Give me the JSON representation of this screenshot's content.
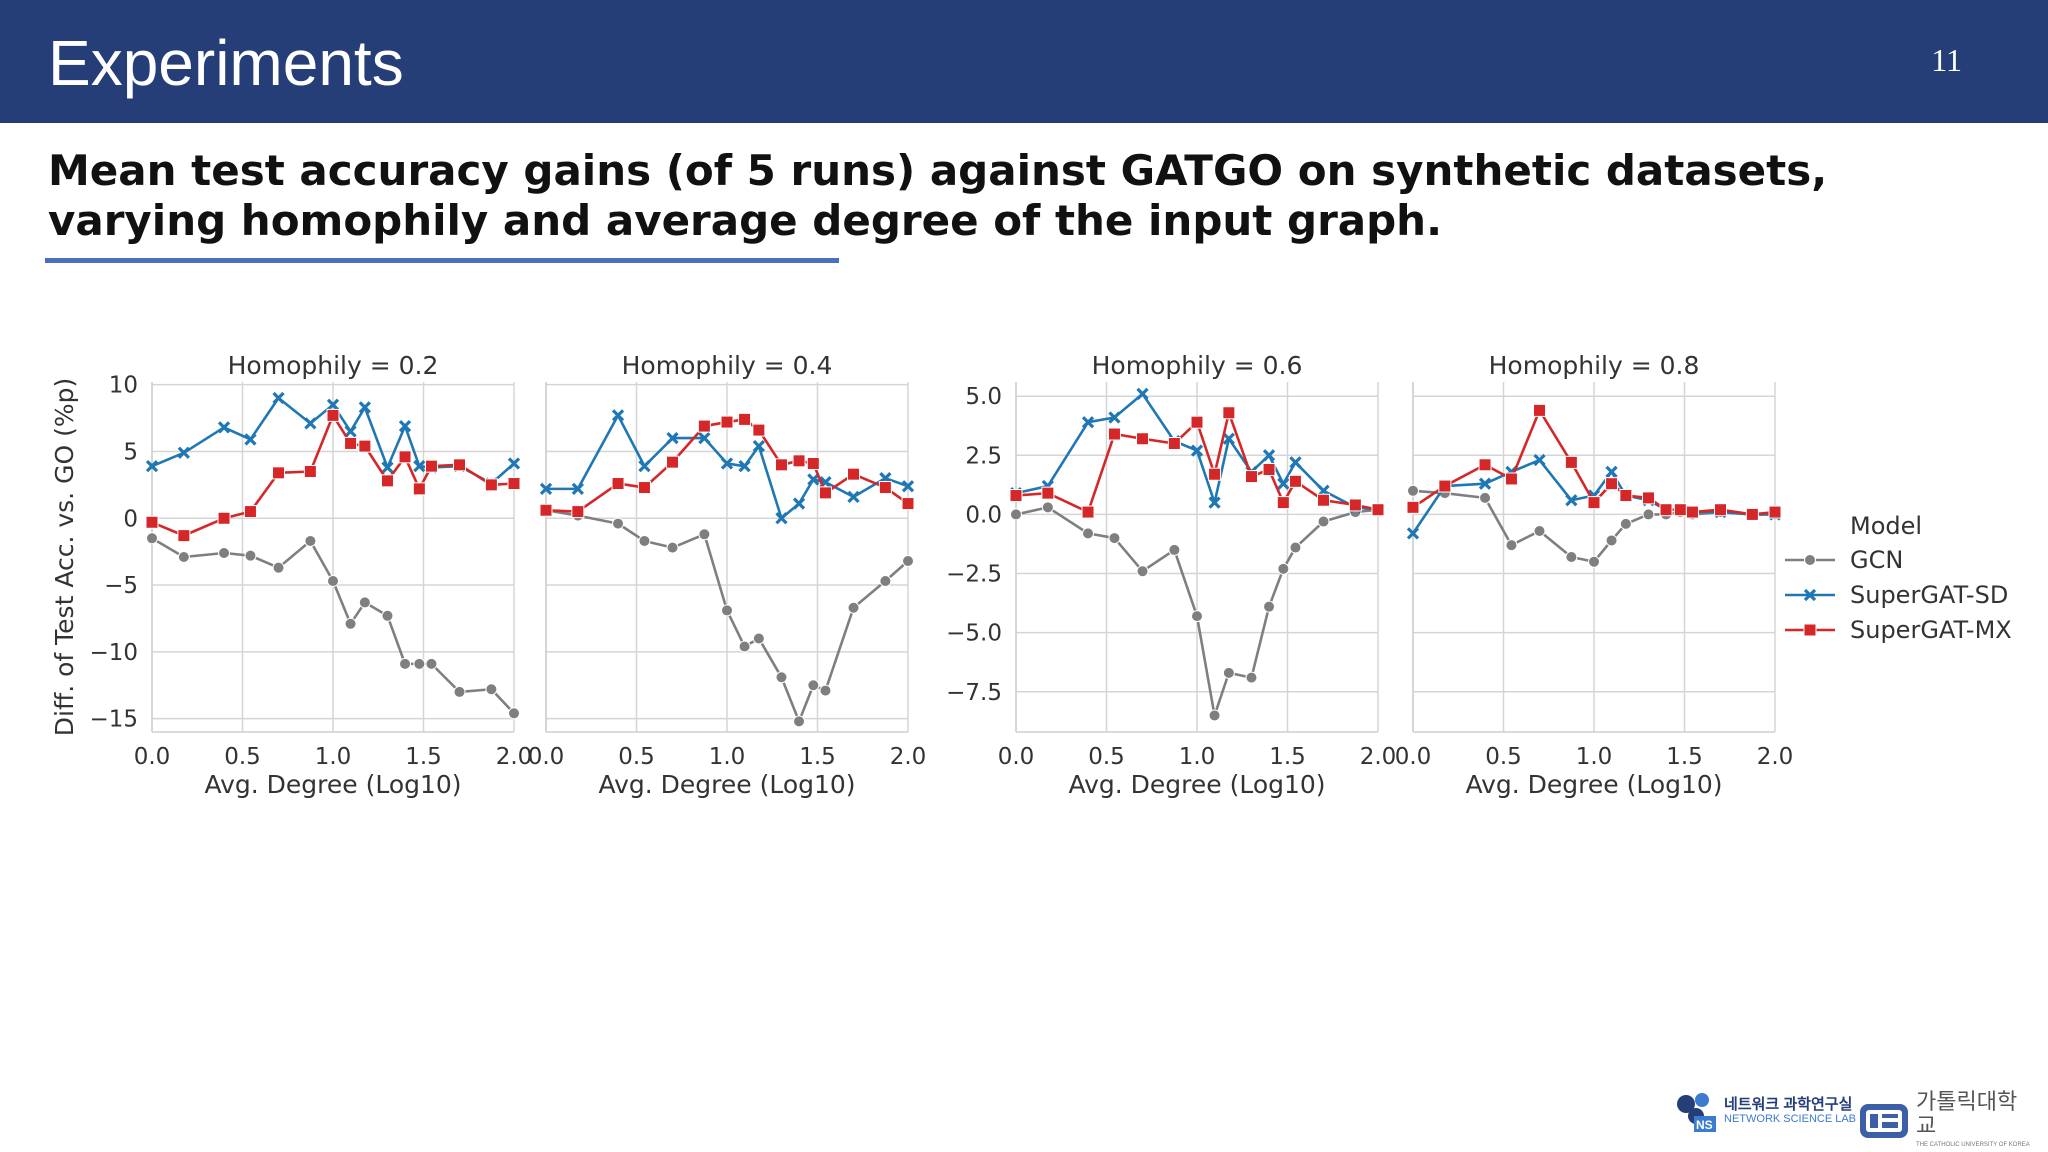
{
  "slide": {
    "title": "Experiments",
    "page_number": "11",
    "subtitle": "Mean test accuracy gains (of 5 runs) against GATGO on synthetic datasets, varying homophily and average degree of the input graph."
  },
  "logos": {
    "lab_ko": "네트워크 과학연구실",
    "lab_en": "NETWORK SCIENCE LAB",
    "univ_ko": "가톨릭대학교",
    "univ_en": "THE CATHOLIC UNIVERSITY OF KOREA"
  },
  "colors": {
    "header": "#253e78",
    "GCN": "#7f7f7f",
    "SuperGAT-SD": "#1f77b4",
    "SuperGAT-MX": "#d62728"
  },
  "chart_data": {
    "type": "line",
    "ylabel": "Diff. of Test Acc. vs. GO (%p)",
    "legend": {
      "title": "Model",
      "position": "right",
      "entries": [
        "GCN",
        "SuperGAT-SD",
        "SuperGAT-MX"
      ]
    },
    "x": [
      0.0,
      0.176,
      0.398,
      0.544,
      0.699,
      0.875,
      1.0,
      1.097,
      1.176,
      1.301,
      1.398,
      1.477,
      1.544,
      1.699,
      1.875,
      2.0
    ],
    "panels": [
      {
        "title": "Homophily = 0.2",
        "xlabel": "Avg. Degree (Log10)",
        "xlim": [
          0,
          2.0
        ],
        "xticks": [
          "0.0",
          "0.5",
          "1.0",
          "1.5",
          "2.0"
        ],
        "ylim": [
          -16,
          10.2
        ],
        "yticks": [
          10,
          5,
          0,
          -5,
          -10,
          -15
        ],
        "ytick_labels": [
          "10",
          "5",
          "0",
          "−5",
          "−10",
          "−15"
        ],
        "series": [
          {
            "name": "GCN",
            "values": [
              -1.5,
              -2.9,
              -2.6,
              -2.8,
              -3.7,
              -1.7,
              -4.7,
              -7.9,
              -6.3,
              -7.3,
              -10.9,
              -10.9,
              -10.9,
              -13.0,
              -12.8,
              -14.6
            ]
          },
          {
            "name": "SuperGAT-SD",
            "values": [
              3.9,
              4.9,
              6.8,
              5.9,
              9.0,
              7.1,
              8.5,
              6.5,
              8.3,
              3.8,
              6.9,
              3.9,
              3.8,
              3.9,
              2.6,
              4.1
            ]
          },
          {
            "name": "SuperGAT-MX",
            "values": [
              -0.3,
              -1.3,
              0.0,
              0.5,
              3.4,
              3.5,
              7.7,
              5.6,
              5.4,
              2.8,
              4.6,
              2.2,
              3.9,
              4.0,
              2.5,
              2.6
            ]
          }
        ]
      },
      {
        "title": "Homophily = 0.4",
        "xlabel": "Avg. Degree (Log10)",
        "xlim": [
          0,
          2.0
        ],
        "xticks": [
          "0.0",
          "0.5",
          "1.0",
          "1.5",
          "2.0"
        ],
        "ylim": [
          -16,
          10.2
        ],
        "yticks": [
          10,
          5,
          0,
          -5,
          -10,
          -15
        ],
        "ytick_labels": [],
        "series": [
          {
            "name": "GCN",
            "values": [
              0.6,
              0.2,
              -0.4,
              -1.7,
              -2.2,
              -1.2,
              -6.9,
              -9.6,
              -9.0,
              -11.9,
              -15.2,
              -12.5,
              -12.9,
              -6.7,
              -4.7,
              -3.2
            ]
          },
          {
            "name": "SuperGAT-SD",
            "values": [
              2.2,
              2.2,
              7.7,
              3.9,
              6.0,
              6.0,
              4.1,
              3.9,
              5.4,
              0.0,
              1.1,
              2.9,
              2.7,
              1.6,
              3.0,
              2.4
            ]
          },
          {
            "name": "SuperGAT-MX",
            "values": [
              0.6,
              0.5,
              2.6,
              2.3,
              4.2,
              6.9,
              7.2,
              7.4,
              6.6,
              4.0,
              4.3,
              4.1,
              1.9,
              3.3,
              2.3,
              1.1
            ]
          }
        ]
      },
      {
        "title": "Homophily = 0.6",
        "xlabel": "Avg. Degree (Log10)",
        "xlim": [
          0,
          2.0
        ],
        "xticks": [
          "0.0",
          "0.5",
          "1.0",
          "1.5",
          "2.0"
        ],
        "ylim": [
          -9.2,
          5.6
        ],
        "yticks": [
          5.0,
          2.5,
          0.0,
          -2.5,
          -5.0,
          -7.5
        ],
        "ytick_labels": [
          "5.0",
          "2.5",
          "0.0",
          "−2.5",
          "−5.0",
          "−7.5"
        ],
        "series": [
          {
            "name": "GCN",
            "values": [
              0.0,
              0.3,
              -0.8,
              -1.0,
              -2.4,
              -1.5,
              -4.3,
              -8.5,
              -6.7,
              -6.9,
              -3.9,
              -2.3,
              -1.4,
              -0.3,
              0.1,
              0.2
            ]
          },
          {
            "name": "SuperGAT-SD",
            "values": [
              0.9,
              1.2,
              3.9,
              4.1,
              5.1,
              3.1,
              2.7,
              0.5,
              3.2,
              1.8,
              2.5,
              1.3,
              2.2,
              1.0,
              0.3,
              0.2
            ]
          },
          {
            "name": "SuperGAT-MX",
            "values": [
              0.8,
              0.9,
              0.1,
              3.4,
              3.2,
              3.0,
              3.9,
              1.7,
              4.3,
              1.6,
              1.9,
              0.5,
              1.4,
              0.6,
              0.4,
              0.2
            ]
          }
        ]
      },
      {
        "title": "Homophily = 0.8",
        "xlabel": "Avg. Degree (Log10)",
        "xlim": [
          0,
          2.0
        ],
        "xticks": [
          "0.0",
          "0.5",
          "1.0",
          "1.5",
          "2.0"
        ],
        "ylim": [
          -9.2,
          5.6
        ],
        "yticks": [
          5.0,
          2.5,
          0.0,
          -2.5,
          -5.0,
          -7.5
        ],
        "ytick_labels": [],
        "series": [
          {
            "name": "GCN",
            "values": [
              1.0,
              0.9,
              0.7,
              -1.3,
              -0.7,
              -1.8,
              -2.0,
              -1.1,
              -0.4,
              0.0,
              0.0,
              0.1,
              0.0,
              0.1,
              0.0,
              0.0
            ]
          },
          {
            "name": "SuperGAT-SD",
            "values": [
              -0.8,
              1.2,
              1.3,
              1.8,
              2.3,
              0.6,
              0.8,
              1.8,
              0.8,
              0.6,
              0.2,
              0.2,
              0.1,
              0.1,
              0.0,
              0.0
            ]
          },
          {
            "name": "SuperGAT-MX",
            "values": [
              0.3,
              1.2,
              2.1,
              1.5,
              4.4,
              2.2,
              0.5,
              1.3,
              0.8,
              0.7,
              0.2,
              0.2,
              0.1,
              0.2,
              0.0,
              0.1
            ]
          }
        ]
      }
    ]
  }
}
